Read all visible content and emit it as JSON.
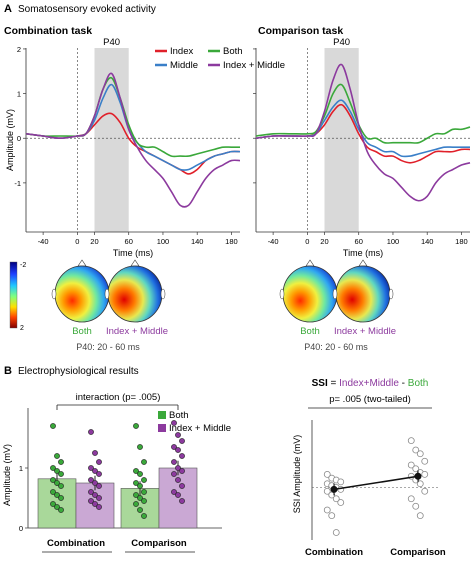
{
  "panel_a": {
    "letter": "A",
    "title": "Somatosensory evoked activity",
    "y_ticks": [
      "2",
      "1",
      "0",
      "-1"
    ],
    "scalp_left_caption": "P40: 20 - 60 ms",
    "scalp_right_caption": "P40: 20 - 60 ms",
    "colorbar_ticks": [
      "-2",
      "2"
    ]
  },
  "panel_b": {
    "letter": "B",
    "title": "Electrophysiological results"
  },
  "colors": {
    "index": "#e0202a",
    "middle": "#3a7fc8",
    "both": "#3aa83a",
    "index_middle": "#8c3a9e",
    "bar_both": "#a9d89a",
    "bar_im": "#caa8d4",
    "shade": "#d9d9d9"
  },
  "chart_data": [
    {
      "type": "line",
      "title": "Combination task",
      "xlabel": "Time (ms)",
      "ylabel": "Amplitude (mV)",
      "xlim": [
        -60,
        190
      ],
      "ylim": [
        -2.1,
        2.2
      ],
      "x_ticks": [
        -40,
        0,
        20,
        60,
        100,
        140,
        180
      ],
      "shade": {
        "label": "P40",
        "range": [
          20,
          60
        ]
      },
      "x": [
        -60,
        -40,
        -20,
        0,
        10,
        20,
        30,
        40,
        50,
        60,
        70,
        80,
        90,
        100,
        110,
        120,
        130,
        140,
        150,
        160,
        170,
        180,
        190
      ],
      "series": [
        {
          "name": "Index",
          "values": [
            0.1,
            0.05,
            0.0,
            0.05,
            0.1,
            0.3,
            0.5,
            0.55,
            0.35,
            0.0,
            -0.2,
            -0.3,
            -0.4,
            -0.5,
            -0.6,
            -0.7,
            -0.8,
            -0.7,
            -0.5,
            -0.4,
            -0.35,
            -0.3,
            -0.3
          ]
        },
        {
          "name": "Middle",
          "values": [
            0.1,
            0.05,
            0.0,
            0.05,
            0.1,
            0.4,
            0.9,
            1.2,
            0.8,
            0.2,
            -0.1,
            -0.3,
            -0.4,
            -0.5,
            -0.6,
            -0.7,
            -0.7,
            -0.6,
            -0.5,
            -0.4,
            -0.35,
            -0.3,
            -0.3
          ]
        },
        {
          "name": "Both",
          "values": [
            0.1,
            0.05,
            0.05,
            0.05,
            0.1,
            0.5,
            1.1,
            1.35,
            0.9,
            0.3,
            -0.1,
            -0.2,
            -0.2,
            -0.3,
            -0.4,
            -0.4,
            -0.4,
            -0.35,
            -0.3,
            -0.25,
            -0.2,
            -0.2,
            -0.2
          ]
        },
        {
          "name": "Index + Middle",
          "values": [
            0.1,
            0.05,
            0.0,
            0.05,
            0.1,
            0.5,
            1.1,
            1.45,
            0.9,
            0.2,
            -0.2,
            -0.5,
            -0.7,
            -0.9,
            -1.2,
            -1.5,
            -1.5,
            -1.2,
            -0.9,
            -0.7,
            -0.6,
            -0.5,
            -0.5
          ]
        }
      ],
      "legend": "top-right"
    },
    {
      "type": "line",
      "title": "Comparison task",
      "xlabel": "Time (ms)",
      "xlim": [
        -60,
        190
      ],
      "ylim": [
        -2.1,
        2.2
      ],
      "x_ticks": [
        -40,
        0,
        20,
        60,
        100,
        140,
        180
      ],
      "shade": {
        "label": "P40",
        "range": [
          20,
          60
        ]
      },
      "x": [
        -60,
        -40,
        -20,
        0,
        10,
        20,
        30,
        40,
        50,
        60,
        70,
        80,
        90,
        100,
        110,
        120,
        130,
        140,
        150,
        160,
        170,
        180,
        190
      ],
      "series": [
        {
          "name": "Index",
          "values": [
            0.0,
            0.05,
            0.05,
            0.05,
            0.1,
            0.3,
            0.6,
            0.75,
            0.5,
            0.1,
            -0.2,
            -0.3,
            -0.4,
            -0.4,
            -0.5,
            -0.55,
            -0.5,
            -0.4,
            -0.3,
            -0.3,
            -0.3,
            -0.25,
            -0.25
          ]
        },
        {
          "name": "Middle",
          "values": [
            0.0,
            0.05,
            0.05,
            0.05,
            0.1,
            0.4,
            0.7,
            0.85,
            0.6,
            0.2,
            -0.1,
            -0.2,
            -0.3,
            -0.3,
            -0.4,
            -0.4,
            -0.35,
            -0.3,
            -0.25,
            -0.2,
            -0.2,
            -0.2,
            -0.2
          ]
        },
        {
          "name": "Both",
          "values": [
            0.05,
            0.1,
            0.1,
            0.1,
            0.15,
            0.5,
            1.0,
            1.2,
            0.8,
            0.3,
            0.0,
            0.0,
            -0.1,
            -0.1,
            -0.1,
            -0.1,
            -0.1,
            0.0,
            0.1,
            0.1,
            0.2,
            0.2,
            0.25
          ]
        },
        {
          "name": "Index + Middle",
          "values": [
            0.0,
            0.05,
            0.05,
            0.05,
            0.1,
            0.6,
            1.3,
            1.65,
            1.1,
            0.3,
            -0.3,
            -0.6,
            -0.8,
            -0.9,
            -1.1,
            -1.3,
            -1.4,
            -1.3,
            -1.0,
            -0.8,
            -0.7,
            -0.6,
            -0.55
          ]
        }
      ],
      "legend": "none"
    },
    {
      "type": "bar",
      "ylabel": "Amplitude (mV)",
      "ylim": [
        0,
        2
      ],
      "y_ticks": [
        0,
        1
      ],
      "categories": [
        "Combination",
        "Comparison"
      ],
      "annotation": "interaction (p= .005)",
      "series": [
        {
          "name": "Both",
          "values": [
            0.82,
            0.66
          ],
          "points": [
            [
              1.7,
              1.2,
              1.1,
              1.0,
              0.95,
              0.9,
              0.8,
              0.75,
              0.7,
              0.6,
              0.55,
              0.5,
              0.4,
              0.35,
              0.3
            ],
            [
              1.7,
              1.35,
              1.1,
              0.95,
              0.9,
              0.8,
              0.75,
              0.7,
              0.6,
              0.55,
              0.5,
              0.45,
              0.4,
              0.3,
              0.2
            ]
          ]
        },
        {
          "name": "Index + Middle",
          "values": [
            0.75,
            1.0
          ],
          "points": [
            [
              1.6,
              1.25,
              1.1,
              1.0,
              0.95,
              0.9,
              0.8,
              0.75,
              0.7,
              0.6,
              0.55,
              0.5,
              0.45,
              0.4,
              0.35
            ],
            [
              1.75,
              1.55,
              1.45,
              1.35,
              1.3,
              1.2,
              1.1,
              1.0,
              0.95,
              0.9,
              0.8,
              0.7,
              0.6,
              0.55,
              0.45
            ]
          ]
        }
      ],
      "legend": "top-right"
    },
    {
      "type": "scatter",
      "title_parts": [
        "SSI",
        " = ",
        "Index+Middle",
        " - ",
        "Both"
      ],
      "subtitle": "p= .005 (two-tailed)",
      "ylabel": "SSI Amplitude (mV)",
      "ylim": [
        -1.4,
        1.8
      ],
      "categories": [
        "Combination",
        "Comparison"
      ],
      "means": [
        -0.05,
        0.3
      ],
      "points": [
        [
          0.35,
          0.25,
          0.2,
          0.15,
          0.1,
          0.05,
          0.0,
          -0.05,
          -0.1,
          -0.2,
          -0.3,
          -0.4,
          -0.6,
          -0.75,
          -1.2
        ],
        [
          1.25,
          1.0,
          0.9,
          0.7,
          0.6,
          0.5,
          0.4,
          0.35,
          0.3,
          0.2,
          0.1,
          -0.1,
          -0.3,
          -0.5,
          -0.75
        ]
      ]
    }
  ]
}
